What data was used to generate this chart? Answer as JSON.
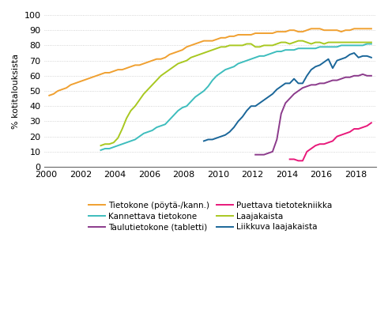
{
  "title": "",
  "ylabel": "% kotitalouksista",
  "xlim": [
    1999.9,
    2019.2
  ],
  "ylim": [
    0,
    100
  ],
  "xticks": [
    2000,
    2002,
    2004,
    2006,
    2008,
    2010,
    2012,
    2014,
    2016,
    2018
  ],
  "yticks": [
    0,
    10,
    20,
    30,
    40,
    50,
    60,
    70,
    80,
    90,
    100
  ],
  "series": {
    "Tietokone (pöytä-/kann.)": {
      "color": "#F0A030",
      "x": [
        2000.17,
        2000.42,
        2000.67,
        2000.92,
        2001.17,
        2001.42,
        2001.67,
        2001.92,
        2002.17,
        2002.42,
        2002.67,
        2002.92,
        2003.17,
        2003.42,
        2003.67,
        2003.92,
        2004.17,
        2004.42,
        2004.67,
        2004.92,
        2005.17,
        2005.42,
        2005.67,
        2005.92,
        2006.17,
        2006.42,
        2006.67,
        2006.92,
        2007.17,
        2007.42,
        2007.67,
        2007.92,
        2008.17,
        2008.42,
        2008.67,
        2008.92,
        2009.17,
        2009.42,
        2009.67,
        2009.92,
        2010.17,
        2010.42,
        2010.67,
        2010.92,
        2011.17,
        2011.42,
        2011.67,
        2011.92,
        2012.17,
        2012.42,
        2012.67,
        2012.92,
        2013.17,
        2013.42,
        2013.67,
        2013.92,
        2014.17,
        2014.42,
        2014.67,
        2014.92,
        2015.17,
        2015.42,
        2015.67,
        2015.92,
        2016.17,
        2016.42,
        2016.67,
        2016.92,
        2017.17,
        2017.42,
        2017.67,
        2017.92,
        2018.17,
        2018.42,
        2018.67,
        2018.92
      ],
      "y": [
        47,
        48,
        50,
        51,
        52,
        54,
        55,
        56,
        57,
        58,
        59,
        60,
        61,
        62,
        62,
        63,
        64,
        64,
        65,
        66,
        67,
        67,
        68,
        69,
        70,
        71,
        71,
        72,
        74,
        75,
        76,
        77,
        79,
        80,
        81,
        82,
        83,
        83,
        83,
        84,
        85,
        85,
        86,
        86,
        87,
        87,
        87,
        87,
        88,
        88,
        88,
        88,
        88,
        89,
        89,
        89,
        90,
        90,
        89,
        89,
        90,
        91,
        91,
        91,
        90,
        90,
        90,
        90,
        89,
        90,
        90,
        91,
        91,
        91,
        91,
        91
      ]
    },
    "Kannettava tietokone": {
      "color": "#3DBDBD",
      "x": [
        2003.17,
        2003.42,
        2003.67,
        2003.92,
        2004.17,
        2004.42,
        2004.67,
        2004.92,
        2005.17,
        2005.42,
        2005.67,
        2005.92,
        2006.17,
        2006.42,
        2006.67,
        2006.92,
        2007.17,
        2007.42,
        2007.67,
        2007.92,
        2008.17,
        2008.42,
        2008.67,
        2008.92,
        2009.17,
        2009.42,
        2009.67,
        2009.92,
        2010.17,
        2010.42,
        2010.67,
        2010.92,
        2011.17,
        2011.42,
        2011.67,
        2011.92,
        2012.17,
        2012.42,
        2012.67,
        2012.92,
        2013.17,
        2013.42,
        2013.67,
        2013.92,
        2014.17,
        2014.42,
        2014.67,
        2014.92,
        2015.17,
        2015.42,
        2015.67,
        2015.92,
        2016.17,
        2016.42,
        2016.67,
        2016.92,
        2017.17,
        2017.42,
        2017.67,
        2017.92,
        2018.17,
        2018.42,
        2018.67,
        2018.92
      ],
      "y": [
        11,
        12,
        12,
        13,
        14,
        15,
        16,
        17,
        18,
        20,
        22,
        23,
        24,
        26,
        27,
        28,
        31,
        34,
        37,
        39,
        40,
        43,
        46,
        48,
        50,
        53,
        57,
        60,
        62,
        64,
        65,
        66,
        68,
        69,
        70,
        71,
        72,
        73,
        73,
        74,
        75,
        76,
        76,
        77,
        77,
        77,
        78,
        78,
        78,
        78,
        78,
        79,
        79,
        79,
        79,
        79,
        80,
        80,
        80,
        80,
        80,
        80,
        81,
        81
      ]
    },
    "Taulutietokone (tabletti)": {
      "color": "#8B3A8B",
      "x": [
        2012.17,
        2012.42,
        2012.67,
        2012.92,
        2013.17,
        2013.42,
        2013.67,
        2013.92,
        2014.17,
        2014.42,
        2014.67,
        2014.92,
        2015.17,
        2015.42,
        2015.67,
        2015.92,
        2016.17,
        2016.42,
        2016.67,
        2016.92,
        2017.17,
        2017.42,
        2017.67,
        2017.92,
        2018.17,
        2018.42,
        2018.67,
        2018.92
      ],
      "y": [
        8,
        8,
        8,
        9,
        10,
        18,
        35,
        42,
        45,
        48,
        50,
        52,
        53,
        54,
        54,
        55,
        55,
        56,
        57,
        57,
        58,
        59,
        59,
        60,
        60,
        61,
        60,
        60
      ]
    },
    "Puettava tietotekniikka": {
      "color": "#E8187A",
      "x": [
        2014.17,
        2014.42,
        2014.67,
        2014.92,
        2015.17,
        2015.42,
        2015.67,
        2015.92,
        2016.17,
        2016.42,
        2016.67,
        2016.92,
        2017.17,
        2017.42,
        2017.67,
        2017.92,
        2018.17,
        2018.42,
        2018.67,
        2018.92
      ],
      "y": [
        5,
        5,
        4,
        4,
        10,
        12,
        14,
        15,
        15,
        16,
        17,
        20,
        21,
        22,
        23,
        25,
        25,
        26,
        27,
        29
      ]
    },
    "Laajakaista": {
      "color": "#A8C820",
      "x": [
        2003.17,
        2003.42,
        2003.67,
        2003.92,
        2004.17,
        2004.42,
        2004.67,
        2004.92,
        2005.17,
        2005.42,
        2005.67,
        2005.92,
        2006.17,
        2006.42,
        2006.67,
        2006.92,
        2007.17,
        2007.42,
        2007.67,
        2007.92,
        2008.17,
        2008.42,
        2008.67,
        2008.92,
        2009.17,
        2009.42,
        2009.67,
        2009.92,
        2010.17,
        2010.42,
        2010.67,
        2010.92,
        2011.17,
        2011.42,
        2011.67,
        2011.92,
        2012.17,
        2012.42,
        2012.67,
        2012.92,
        2013.17,
        2013.42,
        2013.67,
        2013.92,
        2014.17,
        2014.42,
        2014.67,
        2014.92,
        2015.17,
        2015.42,
        2015.67,
        2015.92,
        2016.17,
        2016.42,
        2016.67,
        2016.92,
        2017.17,
        2017.42,
        2017.67,
        2017.92,
        2018.17,
        2018.42,
        2018.67,
        2018.92
      ],
      "y": [
        14,
        15,
        15,
        16,
        19,
        25,
        32,
        37,
        40,
        44,
        48,
        51,
        54,
        57,
        60,
        62,
        64,
        66,
        68,
        69,
        70,
        72,
        73,
        74,
        75,
        76,
        77,
        78,
        79,
        79,
        80,
        80,
        80,
        80,
        81,
        81,
        79,
        79,
        80,
        80,
        80,
        81,
        82,
        82,
        81,
        82,
        83,
        83,
        82,
        81,
        82,
        82,
        81,
        82,
        82,
        82,
        82,
        82,
        82,
        82,
        82,
        82,
        82,
        82
      ]
    },
    "Liikkuva laajakaista": {
      "color": "#1A6699",
      "x": [
        2009.17,
        2009.42,
        2009.67,
        2009.92,
        2010.17,
        2010.42,
        2010.67,
        2010.92,
        2011.17,
        2011.42,
        2011.67,
        2011.92,
        2012.17,
        2012.42,
        2012.67,
        2012.92,
        2013.17,
        2013.42,
        2013.67,
        2013.92,
        2014.17,
        2014.42,
        2014.67,
        2014.92,
        2015.17,
        2015.42,
        2015.67,
        2015.92,
        2016.17,
        2016.42,
        2016.67,
        2016.92,
        2017.17,
        2017.42,
        2017.67,
        2017.92,
        2018.17,
        2018.42,
        2018.67,
        2018.92
      ],
      "y": [
        17,
        18,
        18,
        19,
        20,
        21,
        23,
        26,
        30,
        33,
        37,
        40,
        40,
        42,
        44,
        46,
        48,
        51,
        53,
        55,
        55,
        58,
        55,
        55,
        60,
        64,
        66,
        67,
        69,
        71,
        65,
        70,
        71,
        72,
        74,
        75,
        72,
        73,
        73,
        72
      ]
    }
  },
  "legend_order": [
    "Tietokone (pöytä-/kann.)",
    "Kannettava tietokone",
    "Taulutietokone (tabletti)",
    "Puettava tietotekniikka",
    "Laajakaista",
    "Liikkuva laajakaista"
  ],
  "legend_col1": [
    "Tietokone (pöytä-/kann.)",
    "Taulutietokone (tabletti)",
    "Laajakaista"
  ],
  "legend_col2": [
    "Kannettava tietokone",
    "Puettava tietotekniikka",
    "Liikkuva laajakaista"
  ],
  "background_color": "#ffffff",
  "grid_color": "#c8c8c8"
}
